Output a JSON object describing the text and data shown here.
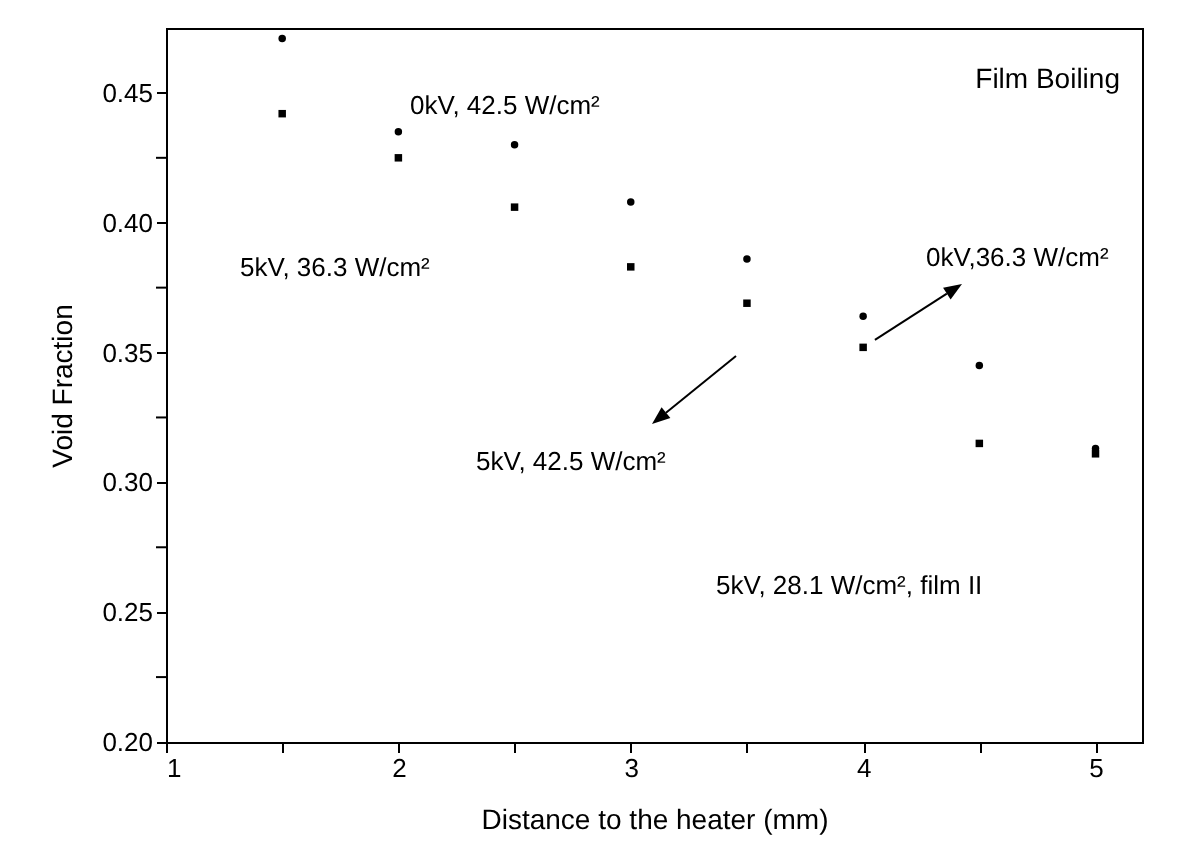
{
  "chart_data": {
    "type": "scatter",
    "title": "Film Boiling",
    "xlabel": "Distance to the heater (mm)",
    "ylabel": "Void Fraction",
    "annotations": [
      "0kV, 42.5 W/cm²",
      "5kV, 36.3 W/cm²",
      {
        "text": "0kV,36.3 W/cm²",
        "x": 4,
        "y": 0.352
      },
      "5kV, 42.5 W/cm²",
      "5kV, 28.1 W/cm², film II"
    ],
    "x": [
      1.5,
      2,
      2.5,
      3,
      3.5,
      4,
      4.5,
      5
    ],
    "series": [
      {
        "color": "#000000",
        "marker": "circle",
        "values": [
          0.471,
          0.435,
          0.43,
          0.408,
          0.386,
          0.364,
          0.345,
          0.313
        ]
      },
      {
        "color": "#000000",
        "marker": "square",
        "values": [
          0.442,
          0.425,
          0.406,
          0.383,
          0.369,
          0.352,
          0.315,
          0.311
        ]
      }
    ],
    "xlim": [
      1,
      5.2
    ],
    "ylim": [
      0.2,
      0.475
    ],
    "xticks": [
      1,
      {
        "value": 1.5,
        "label": null
      },
      2,
      {
        "value": 2.5,
        "label": null
      },
      3,
      {
        "value": 3.5,
        "label": null
      },
      4,
      {
        "value": 4.5,
        "label": null
      },
      5
    ],
    "yticks": [
      {
        "value": 0.2,
        "label": "0.20"
      },
      {
        "value": 0.225,
        "label": null
      },
      {
        "value": 0.25,
        "label": "0.25"
      },
      {
        "value": 0.275,
        "label": null
      },
      {
        "value": 0.3,
        "label": "0.30"
      },
      {
        "value": 0.325,
        "label": null
      },
      {
        "value": 0.35,
        "label": "0.35"
      },
      {
        "value": 0.375,
        "label": null
      },
      {
        "value": 0.4,
        "label": "0.40"
      },
      {
        "value": 0.425,
        "label": null
      },
      {
        "value": 0.45,
        "label": "0.45"
      }
    ],
    "grid": false
  }
}
